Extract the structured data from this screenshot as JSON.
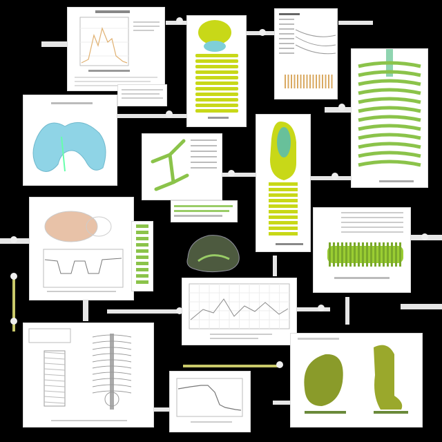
{
  "palette": {
    "background": "#000000",
    "panel": "#ffffff",
    "specimen_green": "#9acd32",
    "specimen_yellow": "#d8e81a",
    "specimen_blue": "#8fd4e6",
    "tissue_pink": "#e8c2a8",
    "ink": "#555555"
  },
  "icons": [
    "specimen-diagram-icon",
    "line-chart-icon",
    "connector-node-icon"
  ]
}
